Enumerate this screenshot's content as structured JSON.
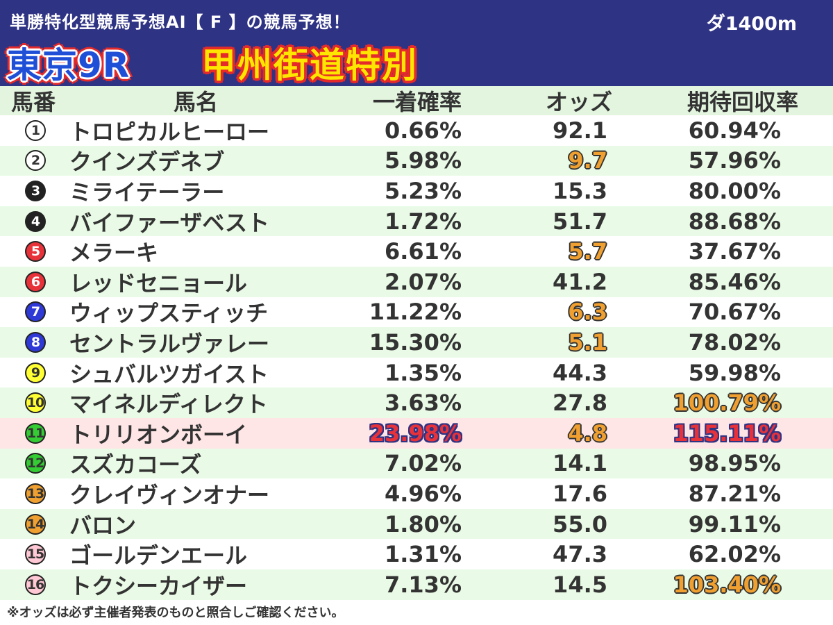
{
  "header": {
    "subtitle": "単勝特化型競馬予想AI【 F 】の競馬予想！",
    "distance": "ダ1400m",
    "race_id": "東京9R",
    "race_name": "甲州街道特別",
    "colors": {
      "background": "#2f3384",
      "race_id": "#1f4fd6",
      "race_name": "#ffe600",
      "outline": "#e42a2a"
    }
  },
  "table": {
    "columns": [
      "馬番",
      "馬名",
      "一着確率",
      "オッズ",
      "期待回収率"
    ],
    "rows": [
      {
        "num": "1",
        "badge_bg": "#ffffff",
        "badge_fg": "#333333",
        "name": "トロピカルヒーロー",
        "prob": "0.66%",
        "odds": "92.1",
        "exp": "60.94%",
        "prob_hl": "",
        "odds_hl": "",
        "exp_hl": ""
      },
      {
        "num": "2",
        "badge_bg": "#ffffff",
        "badge_fg": "#333333",
        "name": "クインズデネブ",
        "prob": "5.98%",
        "odds": "9.7",
        "exp": "57.96%",
        "prob_hl": "",
        "odds_hl": "orange",
        "exp_hl": ""
      },
      {
        "num": "3",
        "badge_bg": "#222222",
        "badge_fg": "#ffffff",
        "name": "ミライテーラー",
        "prob": "5.23%",
        "odds": "15.3",
        "exp": "80.00%",
        "prob_hl": "",
        "odds_hl": "",
        "exp_hl": ""
      },
      {
        "num": "4",
        "badge_bg": "#222222",
        "badge_fg": "#ffffff",
        "name": "バイファーザベスト",
        "prob": "1.72%",
        "odds": "51.7",
        "exp": "88.68%",
        "prob_hl": "",
        "odds_hl": "",
        "exp_hl": ""
      },
      {
        "num": "5",
        "badge_bg": "#e8323a",
        "badge_fg": "#ffffff",
        "name": "メラーキ",
        "prob": "6.61%",
        "odds": "5.7",
        "exp": "37.67%",
        "prob_hl": "",
        "odds_hl": "orange",
        "exp_hl": ""
      },
      {
        "num": "6",
        "badge_bg": "#e8323a",
        "badge_fg": "#ffffff",
        "name": "レッドセニョール",
        "prob": "2.07%",
        "odds": "41.2",
        "exp": "85.46%",
        "prob_hl": "",
        "odds_hl": "",
        "exp_hl": ""
      },
      {
        "num": "7",
        "badge_bg": "#2f3ad6",
        "badge_fg": "#ffffff",
        "name": "ウィップスティッチ",
        "prob": "11.22%",
        "odds": "6.3",
        "exp": "70.67%",
        "prob_hl": "",
        "odds_hl": "orange",
        "exp_hl": ""
      },
      {
        "num": "8",
        "badge_bg": "#2f3ad6",
        "badge_fg": "#ffffff",
        "name": "セントラルヴァレー",
        "prob": "15.30%",
        "odds": "5.1",
        "exp": "78.02%",
        "prob_hl": "",
        "odds_hl": "orange",
        "exp_hl": ""
      },
      {
        "num": "9",
        "badge_bg": "#ffff33",
        "badge_fg": "#333333",
        "name": "シュバルツガイスト",
        "prob": "1.35%",
        "odds": "44.3",
        "exp": "59.98%",
        "prob_hl": "",
        "odds_hl": "",
        "exp_hl": ""
      },
      {
        "num": "10",
        "badge_bg": "#ffff33",
        "badge_fg": "#333333",
        "name": "マイネルディレクト",
        "prob": "3.63%",
        "odds": "27.8",
        "exp": "100.79%",
        "prob_hl": "",
        "odds_hl": "",
        "exp_hl": "orange"
      },
      {
        "num": "11",
        "badge_bg": "#33cc33",
        "badge_fg": "#333333",
        "name": "トリリオンボーイ",
        "prob": "23.98%",
        "odds": "4.8",
        "exp": "115.11%",
        "prob_hl": "red",
        "odds_hl": "orange",
        "exp_hl": "red"
      },
      {
        "num": "12",
        "badge_bg": "#33cc33",
        "badge_fg": "#333333",
        "name": "スズカコーズ",
        "prob": "7.02%",
        "odds": "14.1",
        "exp": "98.95%",
        "prob_hl": "",
        "odds_hl": "",
        "exp_hl": ""
      },
      {
        "num": "13",
        "badge_bg": "#f0a030",
        "badge_fg": "#333333",
        "name": "クレイヴィンオナー",
        "prob": "4.96%",
        "odds": "17.6",
        "exp": "87.21%",
        "prob_hl": "",
        "odds_hl": "",
        "exp_hl": ""
      },
      {
        "num": "14",
        "badge_bg": "#f0a030",
        "badge_fg": "#333333",
        "name": "バロン",
        "prob": "1.80%",
        "odds": "55.0",
        "exp": "99.11%",
        "prob_hl": "",
        "odds_hl": "",
        "exp_hl": ""
      },
      {
        "num": "15",
        "badge_bg": "#ffc8d4",
        "badge_fg": "#333333",
        "name": "ゴールデンエール",
        "prob": "1.31%",
        "odds": "47.3",
        "exp": "62.02%",
        "prob_hl": "",
        "odds_hl": "",
        "exp_hl": ""
      },
      {
        "num": "16",
        "badge_bg": "#ffc8d4",
        "badge_fg": "#333333",
        "name": "トクシーカイザー",
        "prob": "7.13%",
        "odds": "14.5",
        "exp": "103.40%",
        "prob_hl": "",
        "odds_hl": "",
        "exp_hl": "orange"
      }
    ]
  },
  "footnote": "※オッズは必ず主催者発表のものと照合しご確認ください。"
}
